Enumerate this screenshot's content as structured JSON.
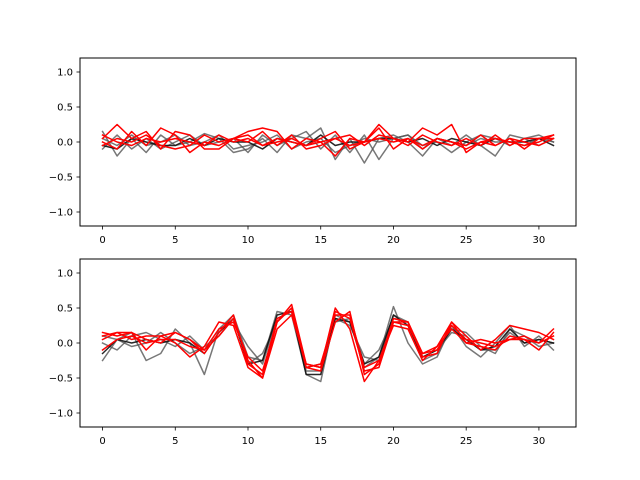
{
  "chart_data": [
    {
      "type": "line",
      "ylim": [
        -1.2,
        1.2
      ],
      "xlim": [
        -1.55,
        32.55
      ],
      "xticks": [
        0,
        5,
        10,
        15,
        20,
        25,
        30
      ],
      "yticks": [
        -1.0,
        -0.5,
        0.0,
        0.5,
        1.0
      ],
      "xtick_labels": [
        "0",
        "5",
        "10",
        "15",
        "20",
        "25",
        "30"
      ],
      "ytick_labels": [
        "−1.0",
        "−0.5",
        "0.0",
        "0.5",
        "1.0"
      ],
      "grid": false,
      "series": [
        {
          "color": "#555555",
          "opacity": 0.8,
          "values": [
            0.15,
            -0.2,
            0.05,
            -0.15,
            0.1,
            -0.05,
            0.0,
            0.12,
            0.05,
            -0.15,
            -0.1,
            0.05,
            -0.15,
            0.1,
            0.05,
            0.2,
            -0.25,
            0.05,
            -0.3,
            0.05,
            0.1,
            0.0,
            -0.2,
            0.05,
            -0.05,
            0.1,
            -0.05,
            -0.2,
            0.1,
            0.05,
            0.1,
            0.0
          ]
        },
        {
          "color": "#555555",
          "opacity": 0.8,
          "values": [
            -0.1,
            0.1,
            -0.1,
            0.05,
            -0.1,
            0.0,
            0.1,
            -0.05,
            0.0,
            0.05,
            -0.15,
            0.1,
            -0.05,
            0.05,
            0.15,
            -0.1,
            0.1,
            -0.15,
            0.1,
            -0.25,
            0.05,
            0.1,
            -0.05,
            0.0,
            -0.15,
            0.0,
            0.1,
            0.05,
            -0.05,
            0.05,
            -0.05,
            0.05
          ]
        },
        {
          "color": "#555555",
          "opacity": 0.8,
          "values": [
            0.05,
            -0.05,
            0.1,
            -0.05,
            0.0,
            0.1,
            -0.05,
            0.0,
            0.1,
            -0.1,
            -0.05,
            0.0,
            0.1,
            -0.1,
            0.0,
            0.05,
            -0.15,
            -0.05,
            0.05,
            0.0,
            0.05,
            0.1,
            -0.1,
            0.05,
            0.0,
            -0.05,
            0.05,
            0.0,
            0.0,
            -0.05,
            0.05,
            0.0
          ]
        },
        {
          "color": "#111111",
          "opacity": 0.9,
          "values": [
            -0.05,
            -0.1,
            0.05,
            0.0,
            -0.05,
            -0.05,
            0.05,
            -0.05,
            0.05,
            0.0,
            0.0,
            -0.1,
            0.05,
            0.0,
            -0.05,
            0.1,
            -0.05,
            0.0,
            0.0,
            0.05,
            0.05,
            0.0,
            0.05,
            -0.05,
            0.05,
            0.0,
            -0.05,
            0.05,
            0.0,
            0.0,
            0.05,
            -0.05
          ]
        },
        {
          "color": "#ff0000",
          "opacity": 1.0,
          "values": [
            0.05,
            0.25,
            0.05,
            0.15,
            -0.1,
            0.15,
            0.1,
            -0.1,
            -0.1,
            0.05,
            0.15,
            0.2,
            0.15,
            -0.1,
            0.05,
            0.0,
            -0.2,
            0.05,
            0.0,
            0.25,
            0.05,
            0.0,
            0.2,
            0.1,
            0.25,
            -0.15,
            0.0,
            -0.05,
            0.05,
            -0.1,
            0.05,
            0.1
          ]
        },
        {
          "color": "#ff0000",
          "opacity": 1.0,
          "values": [
            0.0,
            -0.1,
            0.15,
            -0.05,
            0.2,
            0.1,
            -0.15,
            0.0,
            -0.05,
            0.05,
            0.1,
            -0.05,
            0.05,
            0.0,
            -0.05,
            0.05,
            0.15,
            -0.1,
            0.0,
            0.2,
            -0.1,
            0.05,
            -0.1,
            0.05,
            0.0,
            -0.05,
            0.1,
            -0.05,
            0.05,
            0.0,
            -0.05,
            0.05
          ]
        },
        {
          "color": "#ff0000",
          "opacity": 1.0,
          "values": [
            -0.05,
            0.05,
            0.0,
            0.1,
            -0.05,
            -0.1,
            -0.05,
            0.1,
            0.0,
            0.05,
            0.0,
            0.15,
            -0.05,
            0.1,
            -0.1,
            -0.05,
            0.05,
            0.1,
            -0.05,
            0.1,
            0.05,
            -0.05,
            0.1,
            0.0,
            -0.05,
            0.05,
            -0.05,
            0.1,
            -0.05,
            0.05,
            0.05,
            0.05
          ]
        },
        {
          "color": "#ff0000",
          "opacity": 1.0,
          "values": [
            0.1,
            0.0,
            -0.05,
            0.05,
            0.0,
            0.05,
            0.0,
            -0.05,
            0.1,
            0.0,
            0.05,
            -0.05,
            0.0,
            0.05,
            -0.05,
            0.0,
            0.05,
            -0.05,
            0.0,
            0.05,
            0.0,
            0.05,
            -0.05,
            0.05,
            0.0,
            -0.1,
            0.0,
            0.05,
            0.0,
            -0.05,
            0.0,
            0.1
          ]
        }
      ]
    },
    {
      "type": "line",
      "ylim": [
        -1.2,
        1.2
      ],
      "xlim": [
        -1.55,
        32.55
      ],
      "xticks": [
        0,
        5,
        10,
        15,
        20,
        25,
        30
      ],
      "yticks": [
        -1.0,
        -0.5,
        0.0,
        0.5,
        1.0
      ],
      "xtick_labels": [
        "0",
        "5",
        "10",
        "15",
        "20",
        "25",
        "30"
      ],
      "ytick_labels": [
        "−1.0",
        "−0.5",
        "0.0",
        "0.5",
        "1.0"
      ],
      "grid": false,
      "series": [
        {
          "color": "#555555",
          "opacity": 0.8,
          "values": [
            -0.25,
            0.05,
            0.15,
            -0.25,
            -0.15,
            0.2,
            0.0,
            -0.45,
            0.2,
            0.4,
            -0.2,
            -0.25,
            0.45,
            0.4,
            -0.45,
            -0.55,
            0.4,
            0.3,
            -0.35,
            -0.2,
            0.52,
            0.0,
            -0.3,
            -0.2,
            0.25,
            -0.05,
            -0.2,
            0.0,
            0.25,
            -0.05,
            0.1,
            -0.1
          ]
        },
        {
          "color": "#555555",
          "opacity": 0.8,
          "values": [
            0.0,
            -0.1,
            0.1,
            0.15,
            0.05,
            -0.05,
            0.1,
            -0.1,
            0.2,
            0.3,
            -0.05,
            -0.3,
            0.35,
            0.45,
            -0.4,
            -0.4,
            0.35,
            0.25,
            -0.2,
            -0.25,
            0.4,
            0.3,
            -0.2,
            -0.1,
            0.15,
            0.1,
            -0.1,
            -0.1,
            0.15,
            0.0,
            0.05,
            0.0
          ]
        },
        {
          "color": "#555555",
          "opacity": 0.8,
          "values": [
            0.1,
            0.05,
            -0.05,
            0.0,
            0.15,
            0.0,
            -0.15,
            -0.05,
            0.1,
            0.35,
            -0.3,
            -0.15,
            0.3,
            0.5,
            -0.35,
            -0.3,
            0.3,
            0.35,
            -0.3,
            -0.1,
            0.35,
            0.3,
            -0.25,
            -0.15,
            0.2,
            0.15,
            -0.05,
            -0.15,
            0.2,
            0.1,
            -0.05,
            0.0
          ]
        },
        {
          "color": "#111111",
          "opacity": 0.9,
          "values": [
            -0.15,
            0.05,
            0.0,
            0.05,
            0.0,
            0.05,
            0.0,
            -0.15,
            0.15,
            0.35,
            -0.3,
            -0.25,
            0.4,
            0.45,
            -0.45,
            -0.45,
            0.35,
            0.3,
            -0.3,
            -0.2,
            0.4,
            0.25,
            -0.2,
            -0.1,
            0.2,
            0.05,
            -0.1,
            -0.05,
            0.2,
            0.0,
            0.05,
            0.0
          ]
        },
        {
          "color": "#ff0000",
          "opacity": 1.0,
          "values": [
            0.15,
            0.1,
            0.15,
            -0.1,
            0.1,
            0.0,
            -0.2,
            -0.05,
            0.3,
            0.25,
            -0.35,
            -0.5,
            0.3,
            0.55,
            -0.3,
            -0.35,
            0.5,
            0.2,
            -0.55,
            -0.25,
            0.3,
            0.3,
            -0.15,
            -0.05,
            0.3,
            0.1,
            -0.1,
            0.05,
            0.25,
            0.2,
            0.15,
            0.05
          ]
        },
        {
          "color": "#ff0000",
          "opacity": 1.0,
          "values": [
            0.05,
            0.15,
            0.05,
            0.1,
            0.1,
            0.15,
            0.05,
            -0.15,
            0.15,
            0.4,
            -0.3,
            -0.45,
            0.35,
            0.45,
            -0.35,
            -0.4,
            0.3,
            0.45,
            -0.45,
            -0.3,
            0.35,
            0.3,
            -0.2,
            -0.15,
            0.3,
            0.0,
            -0.05,
            -0.1,
            0.1,
            0.05,
            -0.1,
            0.15
          ]
        },
        {
          "color": "#ff0000",
          "opacity": 1.0,
          "values": [
            0.1,
            0.15,
            0.15,
            0.05,
            0.0,
            0.15,
            0.05,
            -0.1,
            0.1,
            0.35,
            -0.25,
            -0.5,
            0.2,
            0.4,
            -0.3,
            -0.35,
            0.45,
            0.35,
            -0.4,
            -0.35,
            0.3,
            0.25,
            -0.15,
            -0.1,
            0.25,
            0.05,
            0.0,
            -0.05,
            0.05,
            0.1,
            0.0,
            0.2
          ]
        },
        {
          "color": "#ff0000",
          "opacity": 1.0,
          "values": [
            -0.1,
            0.05,
            0.1,
            0.0,
            0.05,
            0.05,
            -0.05,
            -0.1,
            0.2,
            0.3,
            -0.2,
            -0.4,
            0.3,
            0.5,
            -0.35,
            -0.3,
            0.4,
            0.4,
            -0.35,
            -0.25,
            0.25,
            0.2,
            -0.25,
            -0.05,
            0.2,
            0.0,
            0.05,
            0.0,
            0.05,
            0.05,
            0.0,
            0.1
          ]
        }
      ]
    }
  ]
}
